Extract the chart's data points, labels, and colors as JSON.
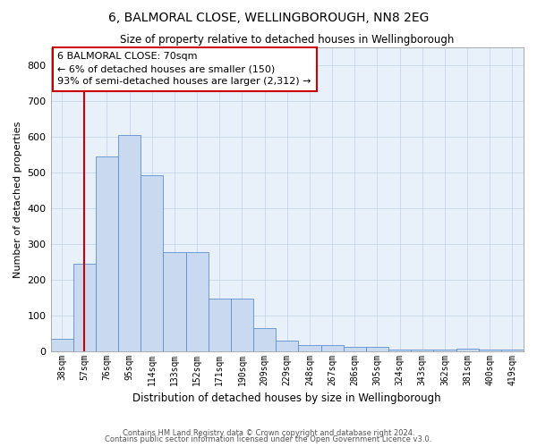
{
  "title": "6, BALMORAL CLOSE, WELLINGBOROUGH, NN8 2EG",
  "subtitle": "Size of property relative to detached houses in Wellingborough",
  "xlabel": "Distribution of detached houses by size in Wellingborough",
  "ylabel": "Number of detached properties",
  "bar_labels": [
    "38sqm",
    "57sqm",
    "76sqm",
    "95sqm",
    "114sqm",
    "133sqm",
    "152sqm",
    "171sqm",
    "190sqm",
    "209sqm",
    "229sqm",
    "248sqm",
    "267sqm",
    "286sqm",
    "305sqm",
    "324sqm",
    "343sqm",
    "362sqm",
    "381sqm",
    "400sqm",
    "419sqm"
  ],
  "bar_values": [
    35,
    245,
    545,
    605,
    492,
    278,
    278,
    148,
    148,
    65,
    30,
    18,
    18,
    13,
    13,
    5,
    5,
    5,
    7,
    5,
    5
  ],
  "bar_color": "#c9d9f0",
  "bar_edgecolor": "#5b8fcc",
  "grid_color": "#c8d8ed",
  "background_color": "#e8f0fa",
  "vline_x": 1,
  "vline_color": "#cc0000",
  "annotation_text": "6 BALMORAL CLOSE: 70sqm\n← 6% of detached houses are smaller (150)\n93% of semi-detached houses are larger (2,312) →",
  "annotation_box_color": "#cc0000",
  "ylim": [
    0,
    850
  ],
  "yticks": [
    0,
    100,
    200,
    300,
    400,
    500,
    600,
    700,
    800
  ],
  "footer_line1": "Contains HM Land Registry data © Crown copyright and database right 2024.",
  "footer_line2": "Contains public sector information licensed under the Open Government Licence v3.0."
}
